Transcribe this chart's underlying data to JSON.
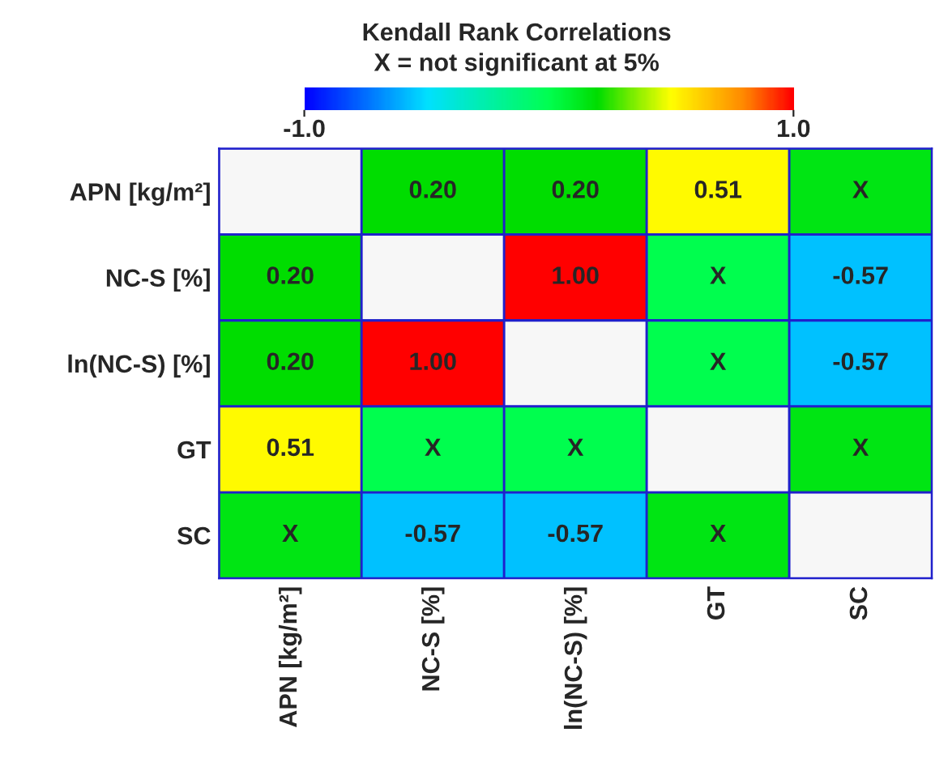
{
  "chart_data": {
    "type": "heatmap",
    "title": "Kendall Rank Correlations",
    "subtitle": "X = not significant at 5%",
    "categories": [
      "APN [kg/m²]",
      "NC-S [%]",
      "ln(NC-S) [%]",
      "GT",
      "SC"
    ],
    "y_categories": [
      "APN [kg/m²]",
      "NC-S [%]",
      "ln(NC-S) [%]",
      "GT",
      "SC"
    ],
    "cells": [
      [
        null,
        0.2,
        0.2,
        0.51,
        0.15
      ],
      [
        0.2,
        null,
        1.0,
        0.0,
        -0.57
      ],
      [
        0.2,
        1.0,
        null,
        0.0,
        -0.57
      ],
      [
        0.51,
        0.0,
        0.0,
        null,
        0.15
      ],
      [
        0.15,
        -0.57,
        -0.57,
        0.15,
        null
      ]
    ],
    "cell_labels": [
      [
        null,
        "0.20",
        "0.20",
        "0.51",
        "X"
      ],
      [
        "0.20",
        null,
        "1.00",
        "X",
        "-0.57"
      ],
      [
        "0.20",
        "1.00",
        null,
        "X",
        "-0.57"
      ],
      [
        "0.51",
        "X",
        "X",
        null,
        "X"
      ],
      [
        "X",
        "-0.57",
        "-0.57",
        "X",
        null
      ]
    ],
    "clim": [
      -1,
      1
    ],
    "cticks": [
      {
        "value": -1,
        "label": "-1.0"
      },
      {
        "value": 1,
        "label": "1.0"
      }
    ]
  }
}
